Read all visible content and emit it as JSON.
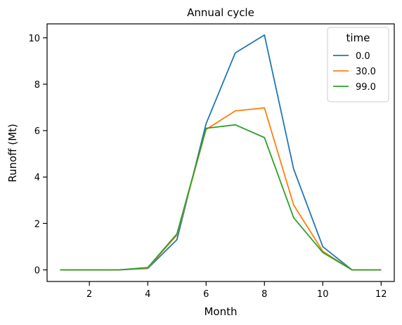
{
  "chart_data": {
    "type": "line",
    "title": "Annual cycle",
    "xlabel": "Month",
    "ylabel": "Runoff (Mt)",
    "xlim": [
      0.55,
      12.45
    ],
    "ylim": [
      -0.5,
      10.6
    ],
    "xticks": [
      2,
      4,
      6,
      8,
      10,
      12
    ],
    "yticks": [
      0,
      2,
      4,
      6,
      8,
      10
    ],
    "grid": false,
    "legend": {
      "title": "time",
      "placement": "top-right"
    },
    "x": [
      1,
      2,
      3,
      4,
      5,
      6,
      7,
      8,
      9,
      10,
      11,
      12
    ],
    "series": [
      {
        "name": "0.0",
        "color": "#1f77b4",
        "values": [
          0.0,
          0.0,
          0.0,
          0.06,
          1.3,
          6.3,
          9.35,
          10.12,
          4.35,
          1.0,
          0.0,
          0.0
        ]
      },
      {
        "name": "30.0",
        "color": "#ff7f0e",
        "values": [
          0.0,
          0.0,
          0.0,
          0.08,
          1.5,
          6.05,
          6.85,
          6.98,
          2.8,
          0.8,
          0.0,
          0.0
        ]
      },
      {
        "name": "99.0",
        "color": "#2ca02c",
        "values": [
          0.0,
          0.0,
          0.0,
          0.1,
          1.55,
          6.1,
          6.25,
          5.7,
          2.25,
          0.75,
          0.0,
          0.0
        ]
      }
    ]
  }
}
